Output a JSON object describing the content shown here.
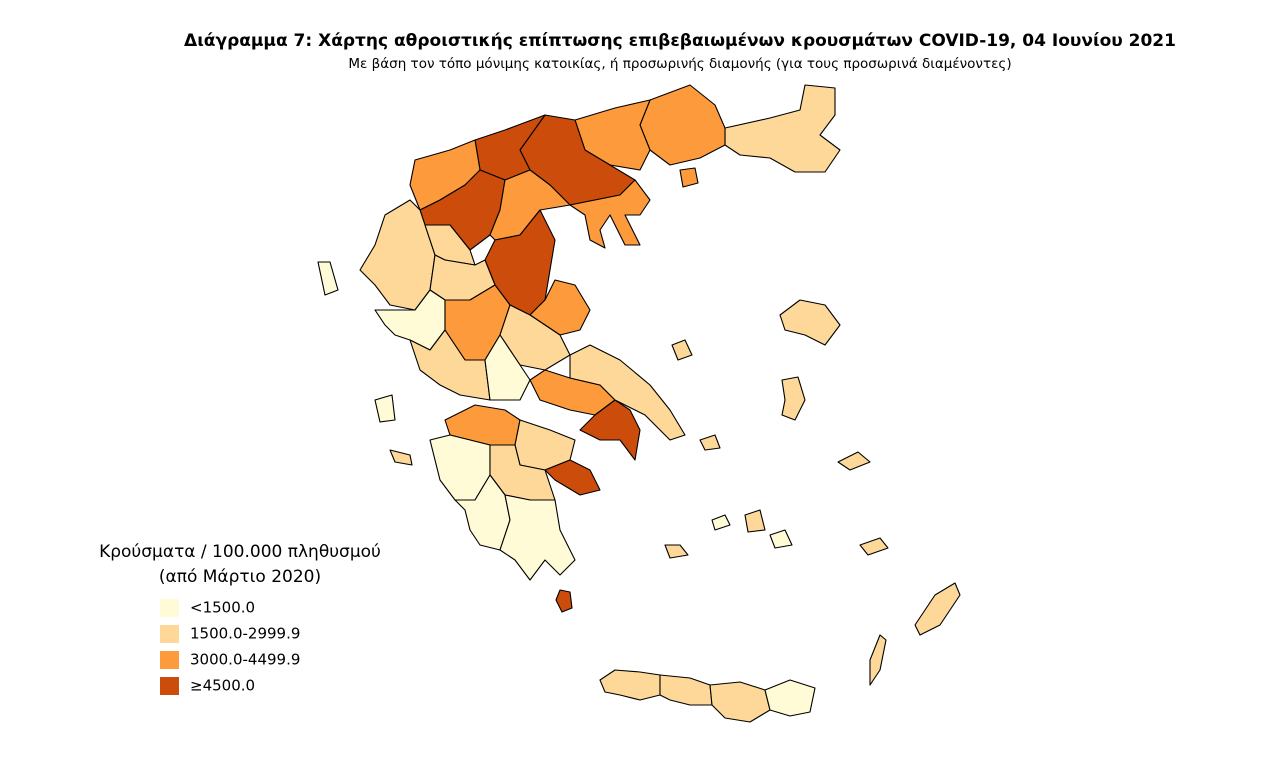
{
  "header": {
    "title": "Διάγραμμα 7: Χάρτης αθροιστικής επίπτωσης επιβεβαιωμένων κρουσμάτων COVID-19, 04 Ιουνίου 2021",
    "subtitle": "Με βάση τον τόπο μόνιμης κατοικίας, ή προσωρινής διαμονής (για τους προσωρινά διαμένοντες)"
  },
  "legend": {
    "title": [
      "Κρούσματα / 100.000 πληθυσμού",
      "(από Μάρτιο 2020)"
    ],
    "items": [
      {
        "label": "<1500.0",
        "color": "#fffbd6"
      },
      {
        "label": "1500.0-2999.9",
        "color": "#fdd898"
      },
      {
        "label": "3000.0-4499.9",
        "color": "#fd9b3c"
      },
      {
        "label": "≥4500.0",
        "color": "#cc4c0c"
      }
    ]
  }
}
